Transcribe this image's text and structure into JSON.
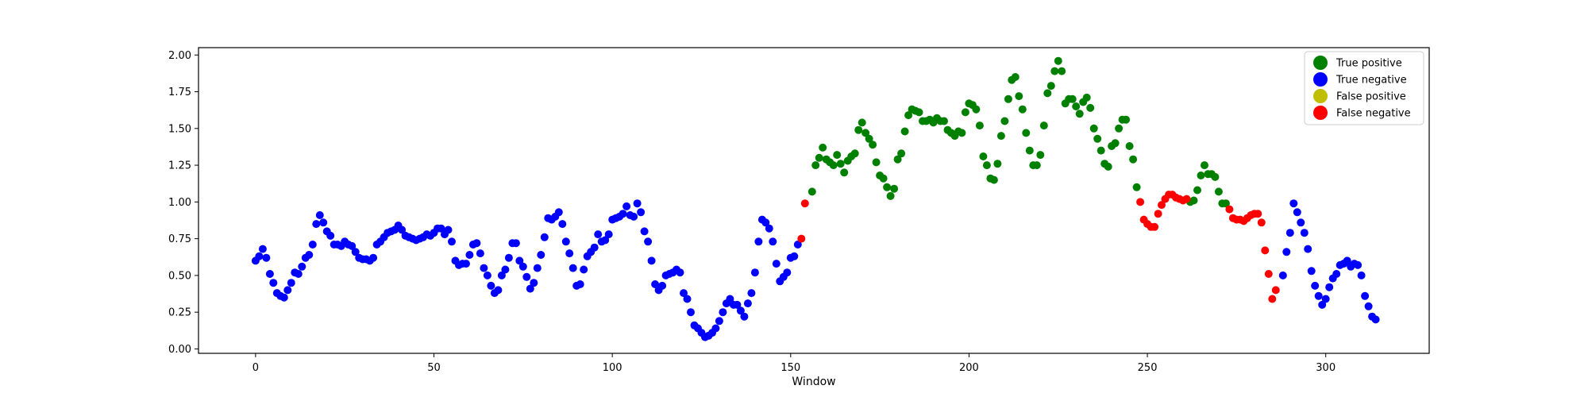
{
  "chart_data": {
    "type": "scatter",
    "title": "",
    "xlabel": "Window",
    "ylabel": "",
    "xlim": [
      -16,
      329
    ],
    "ylim": [
      -0.03,
      2.05
    ],
    "xticks": [
      0,
      50,
      100,
      150,
      200,
      250,
      300
    ],
    "xtick_labels": [
      "0",
      "50",
      "100",
      "150",
      "200",
      "250",
      "300"
    ],
    "yticks": [
      0.0,
      0.25,
      0.5,
      0.75,
      1.0,
      1.25,
      1.5,
      1.75,
      2.0
    ],
    "ytick_labels": [
      "0.00",
      "0.25",
      "0.50",
      "0.75",
      "1.00",
      "1.25",
      "1.50",
      "1.75",
      "2.00"
    ],
    "grid": false,
    "legend_position": "top-right",
    "series": [
      {
        "name": "True positive",
        "color": "#008000",
        "points": [
          [
            156,
            1.07
          ],
          [
            157,
            1.25
          ],
          [
            158,
            1.3
          ],
          [
            159,
            1.37
          ],
          [
            160,
            1.29
          ],
          [
            161,
            1.27
          ],
          [
            162,
            1.25
          ],
          [
            163,
            1.32
          ],
          [
            164,
            1.26
          ],
          [
            165,
            1.2
          ],
          [
            166,
            1.28
          ],
          [
            167,
            1.31
          ],
          [
            168,
            1.33
          ],
          [
            169,
            1.49
          ],
          [
            170,
            1.54
          ],
          [
            171,
            1.47
          ],
          [
            172,
            1.43
          ],
          [
            173,
            1.39
          ],
          [
            174,
            1.27
          ],
          [
            175,
            1.18
          ],
          [
            176,
            1.16
          ],
          [
            177,
            1.1
          ],
          [
            178,
            1.04
          ],
          [
            179,
            1.09
          ],
          [
            180,
            1.29
          ],
          [
            181,
            1.33
          ],
          [
            182,
            1.48
          ],
          [
            183,
            1.59
          ],
          [
            184,
            1.63
          ],
          [
            185,
            1.62
          ],
          [
            186,
            1.61
          ],
          [
            187,
            1.55
          ],
          [
            188,
            1.55
          ],
          [
            189,
            1.56
          ],
          [
            190,
            1.54
          ],
          [
            191,
            1.57
          ],
          [
            192,
            1.55
          ],
          [
            193,
            1.55
          ],
          [
            194,
            1.49
          ],
          [
            195,
            1.47
          ],
          [
            196,
            1.45
          ],
          [
            197,
            1.48
          ],
          [
            198,
            1.47
          ],
          [
            199,
            1.61
          ],
          [
            200,
            1.67
          ],
          [
            201,
            1.66
          ],
          [
            202,
            1.63
          ],
          [
            203,
            1.52
          ],
          [
            204,
            1.31
          ],
          [
            205,
            1.25
          ],
          [
            206,
            1.16
          ],
          [
            207,
            1.15
          ],
          [
            208,
            1.26
          ],
          [
            209,
            1.45
          ],
          [
            210,
            1.55
          ],
          [
            211,
            1.7
          ],
          [
            212,
            1.83
          ],
          [
            213,
            1.85
          ],
          [
            214,
            1.72
          ],
          [
            215,
            1.63
          ],
          [
            216,
            1.47
          ],
          [
            217,
            1.35
          ],
          [
            218,
            1.25
          ],
          [
            219,
            1.25
          ],
          [
            220,
            1.32
          ],
          [
            221,
            1.52
          ],
          [
            222,
            1.74
          ],
          [
            223,
            1.79
          ],
          [
            224,
            1.89
          ],
          [
            225,
            1.96
          ],
          [
            226,
            1.89
          ],
          [
            227,
            1.67
          ],
          [
            228,
            1.7
          ],
          [
            229,
            1.7
          ],
          [
            230,
            1.65
          ],
          [
            231,
            1.6
          ],
          [
            232,
            1.68
          ],
          [
            233,
            1.71
          ],
          [
            234,
            1.64
          ],
          [
            235,
            1.5
          ],
          [
            236,
            1.43
          ],
          [
            237,
            1.35
          ],
          [
            238,
            1.26
          ],
          [
            239,
            1.24
          ],
          [
            240,
            1.38
          ],
          [
            241,
            1.4
          ],
          [
            242,
            1.5
          ],
          [
            243,
            1.56
          ],
          [
            244,
            1.56
          ],
          [
            245,
            1.38
          ],
          [
            246,
            1.29
          ],
          [
            247,
            1.1
          ],
          [
            262,
            1.0
          ],
          [
            263,
            1.01
          ],
          [
            264,
            1.08
          ],
          [
            265,
            1.18
          ],
          [
            266,
            1.25
          ],
          [
            267,
            1.19
          ],
          [
            268,
            1.19
          ],
          [
            269,
            1.17
          ],
          [
            270,
            1.07
          ],
          [
            271,
            0.99
          ],
          [
            272,
            0.99
          ]
        ]
      },
      {
        "name": "True negative",
        "color": "#0000ff",
        "points": [
          [
            0,
            0.6
          ],
          [
            1,
            0.63
          ],
          [
            2,
            0.68
          ],
          [
            3,
            0.62
          ],
          [
            4,
            0.51
          ],
          [
            5,
            0.45
          ],
          [
            6,
            0.38
          ],
          [
            7,
            0.36
          ],
          [
            8,
            0.35
          ],
          [
            9,
            0.4
          ],
          [
            10,
            0.45
          ],
          [
            11,
            0.52
          ],
          [
            12,
            0.51
          ],
          [
            13,
            0.56
          ],
          [
            14,
            0.62
          ],
          [
            15,
            0.64
          ],
          [
            16,
            0.71
          ],
          [
            17,
            0.85
          ],
          [
            18,
            0.91
          ],
          [
            19,
            0.86
          ],
          [
            20,
            0.8
          ],
          [
            21,
            0.77
          ],
          [
            22,
            0.71
          ],
          [
            23,
            0.71
          ],
          [
            24,
            0.7
          ],
          [
            25,
            0.73
          ],
          [
            26,
            0.71
          ],
          [
            27,
            0.7
          ],
          [
            28,
            0.66
          ],
          [
            29,
            0.62
          ],
          [
            30,
            0.61
          ],
          [
            31,
            0.61
          ],
          [
            32,
            0.6
          ],
          [
            33,
            0.62
          ],
          [
            34,
            0.71
          ],
          [
            35,
            0.73
          ],
          [
            36,
            0.76
          ],
          [
            37,
            0.79
          ],
          [
            38,
            0.8
          ],
          [
            39,
            0.81
          ],
          [
            40,
            0.84
          ],
          [
            41,
            0.81
          ],
          [
            42,
            0.77
          ],
          [
            43,
            0.76
          ],
          [
            44,
            0.75
          ],
          [
            45,
            0.74
          ],
          [
            46,
            0.75
          ],
          [
            47,
            0.76
          ],
          [
            48,
            0.78
          ],
          [
            49,
            0.77
          ],
          [
            50,
            0.79
          ],
          [
            51,
            0.82
          ],
          [
            52,
            0.82
          ],
          [
            53,
            0.78
          ],
          [
            54,
            0.81
          ],
          [
            55,
            0.73
          ],
          [
            56,
            0.6
          ],
          [
            57,
            0.57
          ],
          [
            58,
            0.58
          ],
          [
            59,
            0.58
          ],
          [
            60,
            0.64
          ],
          [
            61,
            0.71
          ],
          [
            62,
            0.72
          ],
          [
            63,
            0.65
          ],
          [
            64,
            0.55
          ],
          [
            65,
            0.5
          ],
          [
            66,
            0.43
          ],
          [
            67,
            0.38
          ],
          [
            68,
            0.4
          ],
          [
            69,
            0.5
          ],
          [
            70,
            0.54
          ],
          [
            71,
            0.62
          ],
          [
            72,
            0.72
          ],
          [
            73,
            0.72
          ],
          [
            74,
            0.6
          ],
          [
            75,
            0.56
          ],
          [
            76,
            0.49
          ],
          [
            77,
            0.41
          ],
          [
            78,
            0.45
          ],
          [
            79,
            0.55
          ],
          [
            80,
            0.64
          ],
          [
            81,
            0.76
          ],
          [
            82,
            0.89
          ],
          [
            83,
            0.88
          ],
          [
            84,
            0.9
          ],
          [
            85,
            0.93
          ],
          [
            86,
            0.85
          ],
          [
            87,
            0.73
          ],
          [
            88,
            0.65
          ],
          [
            89,
            0.55
          ],
          [
            90,
            0.43
          ],
          [
            91,
            0.44
          ],
          [
            92,
            0.54
          ],
          [
            93,
            0.63
          ],
          [
            94,
            0.66
          ],
          [
            95,
            0.69
          ],
          [
            96,
            0.78
          ],
          [
            97,
            0.73
          ],
          [
            98,
            0.74
          ],
          [
            99,
            0.78
          ],
          [
            100,
            0.88
          ],
          [
            101,
            0.89
          ],
          [
            102,
            0.9
          ],
          [
            103,
            0.92
          ],
          [
            104,
            0.97
          ],
          [
            105,
            0.91
          ],
          [
            106,
            0.9
          ],
          [
            107,
            0.99
          ],
          [
            108,
            0.93
          ],
          [
            109,
            0.8
          ],
          [
            110,
            0.73
          ],
          [
            111,
            0.6
          ],
          [
            112,
            0.44
          ],
          [
            113,
            0.4
          ],
          [
            114,
            0.43
          ],
          [
            115,
            0.5
          ],
          [
            116,
            0.51
          ],
          [
            117,
            0.52
          ],
          [
            118,
            0.54
          ],
          [
            119,
            0.52
          ],
          [
            120,
            0.38
          ],
          [
            121,
            0.34
          ],
          [
            122,
            0.25
          ],
          [
            123,
            0.16
          ],
          [
            124,
            0.14
          ],
          [
            125,
            0.11
          ],
          [
            126,
            0.08
          ],
          [
            127,
            0.09
          ],
          [
            128,
            0.11
          ],
          [
            129,
            0.14
          ],
          [
            130,
            0.19
          ],
          [
            131,
            0.25
          ],
          [
            132,
            0.31
          ],
          [
            133,
            0.34
          ],
          [
            134,
            0.3
          ],
          [
            135,
            0.3
          ],
          [
            136,
            0.26
          ],
          [
            137,
            0.22
          ],
          [
            138,
            0.31
          ],
          [
            139,
            0.38
          ],
          [
            140,
            0.52
          ],
          [
            141,
            0.73
          ],
          [
            142,
            0.88
          ],
          [
            143,
            0.86
          ],
          [
            144,
            0.82
          ],
          [
            145,
            0.73
          ],
          [
            146,
            0.58
          ],
          [
            147,
            0.46
          ],
          [
            148,
            0.49
          ],
          [
            149,
            0.52
          ],
          [
            150,
            0.62
          ],
          [
            151,
            0.63
          ],
          [
            152,
            0.71
          ],
          [
            288,
            0.5
          ],
          [
            289,
            0.66
          ],
          [
            290,
            0.79
          ],
          [
            291,
            0.99
          ],
          [
            292,
            0.93
          ],
          [
            293,
            0.86
          ],
          [
            294,
            0.79
          ],
          [
            295,
            0.68
          ],
          [
            296,
            0.53
          ],
          [
            297,
            0.43
          ],
          [
            298,
            0.36
          ],
          [
            299,
            0.3
          ],
          [
            300,
            0.34
          ],
          [
            301,
            0.42
          ],
          [
            302,
            0.48
          ],
          [
            303,
            0.51
          ],
          [
            304,
            0.57
          ],
          [
            305,
            0.58
          ],
          [
            306,
            0.6
          ],
          [
            307,
            0.56
          ],
          [
            308,
            0.58
          ],
          [
            309,
            0.57
          ],
          [
            310,
            0.5
          ],
          [
            311,
            0.36
          ],
          [
            312,
            0.29
          ],
          [
            313,
            0.22
          ],
          [
            314,
            0.2
          ]
        ]
      },
      {
        "name": "False positive",
        "color": "#bfbf00",
        "points": []
      },
      {
        "name": "False negative",
        "color": "#ff0000",
        "points": [
          [
            153,
            0.75
          ],
          [
            154,
            0.99
          ],
          [
            248,
            1.0
          ],
          [
            249,
            0.88
          ],
          [
            250,
            0.85
          ],
          [
            251,
            0.83
          ],
          [
            252,
            0.83
          ],
          [
            253,
            0.92
          ],
          [
            254,
            0.98
          ],
          [
            255,
            1.02
          ],
          [
            256,
            1.05
          ],
          [
            257,
            1.05
          ],
          [
            258,
            1.03
          ],
          [
            259,
            1.02
          ],
          [
            260,
            1.01
          ],
          [
            261,
            1.02
          ],
          [
            273,
            0.95
          ],
          [
            274,
            0.89
          ],
          [
            275,
            0.88
          ],
          [
            276,
            0.88
          ],
          [
            277,
            0.87
          ],
          [
            278,
            0.89
          ],
          [
            279,
            0.91
          ],
          [
            280,
            0.92
          ],
          [
            281,
            0.92
          ],
          [
            282,
            0.86
          ],
          [
            283,
            0.67
          ],
          [
            284,
            0.51
          ],
          [
            285,
            0.34
          ],
          [
            286,
            0.4
          ]
        ]
      }
    ]
  }
}
